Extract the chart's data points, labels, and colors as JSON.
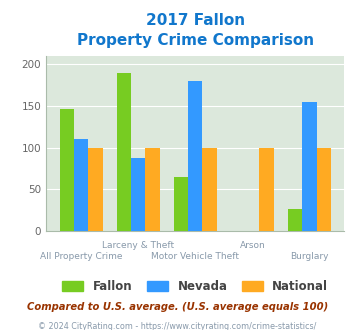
{
  "title_line1": "2017 Fallon",
  "title_line2": "Property Crime Comparison",
  "x_labels_top": [
    "",
    "Larceny & Theft",
    "",
    "Arson",
    ""
  ],
  "x_labels_bottom": [
    "All Property Crime",
    "",
    "Motor Vehicle Theft",
    "",
    "Burglary"
  ],
  "fallon": [
    147,
    190,
    65,
    0,
    26
  ],
  "nevada": [
    110,
    88,
    180,
    0,
    155
  ],
  "national": [
    100,
    100,
    100,
    100,
    100
  ],
  "arson_national": 100,
  "fallon_color": "#77cc22",
  "nevada_color": "#3399ff",
  "national_color": "#ffaa22",
  "bg_color": "#dce8dc",
  "ylim": [
    0,
    210
  ],
  "yticks": [
    0,
    50,
    100,
    150,
    200
  ],
  "title_color": "#1177cc",
  "footnote1": "Compared to U.S. average. (U.S. average equals 100)",
  "footnote2": "© 2024 CityRating.com - https://www.cityrating.com/crime-statistics/",
  "footnote1_color": "#993300",
  "footnote2_color": "#8899aa",
  "legend_labels": [
    "Fallon",
    "Nevada",
    "National"
  ]
}
